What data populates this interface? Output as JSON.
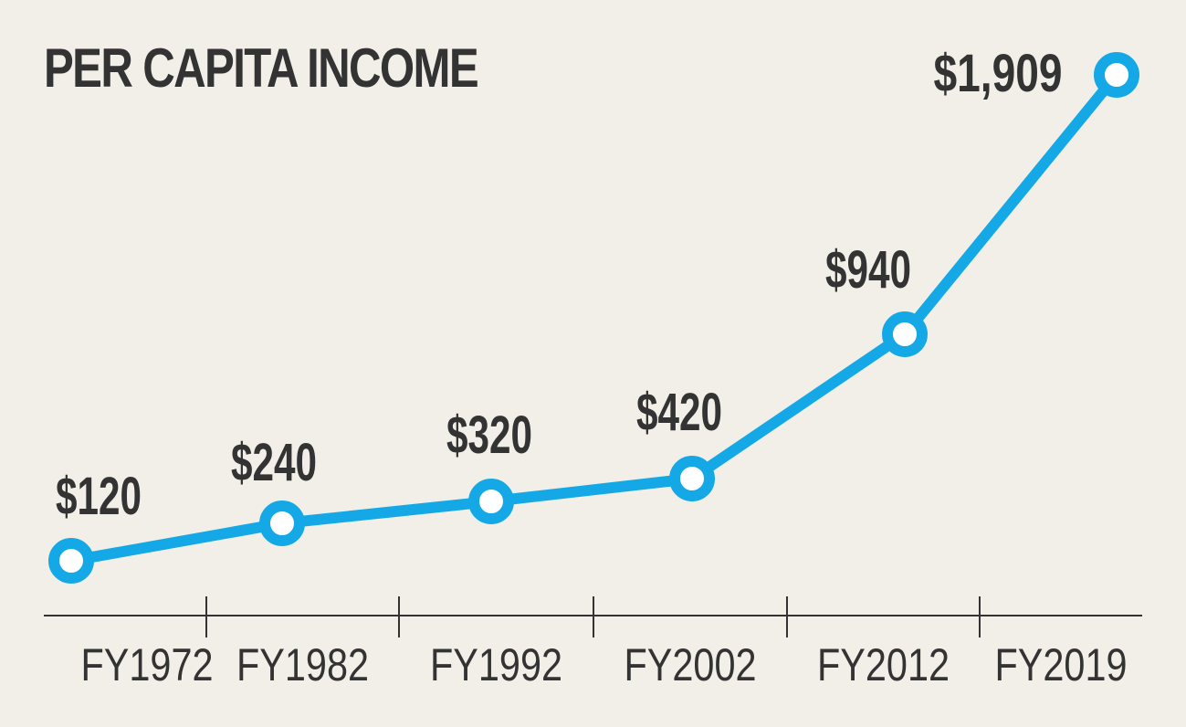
{
  "chart_data": {
    "type": "line",
    "title": "PER CAPITA INCOME",
    "categories": [
      "FY1972",
      "FY1982",
      "FY1992",
      "FY2002",
      "FY2012",
      "FY2019"
    ],
    "values": [
      120,
      240,
      320,
      420,
      940,
      1909
    ],
    "data_labels": [
      "$120",
      "$240",
      "$320",
      "$420",
      "$940",
      "$1,909"
    ],
    "xlabel": "",
    "ylabel": "",
    "grid": false,
    "legend": "none",
    "colors": {
      "line": "#14a9e6",
      "marker_fill": "#ffffff",
      "text": "#333333",
      "axis": "#333333",
      "background": "#f1efe8"
    }
  }
}
